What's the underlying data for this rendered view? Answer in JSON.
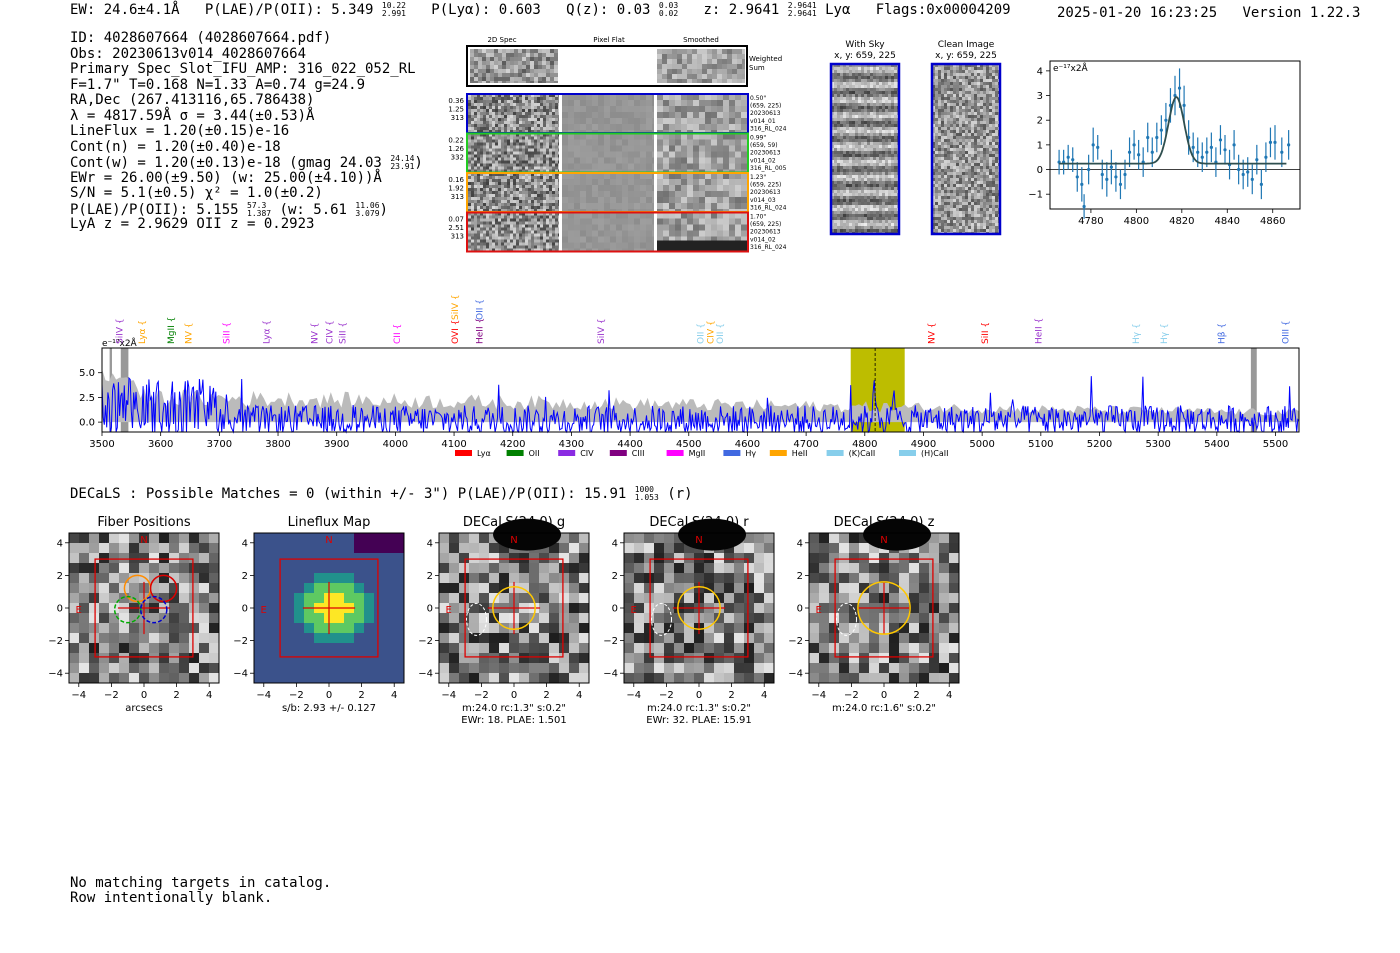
{
  "header": {
    "ew": "EW: 24.6±4.1Å",
    "plae_label": "P(LAE)/P(OII): 5.349",
    "plae_hi": "10.22",
    "plae_lo": "2.991",
    "plya": "P(Lyα): 0.603",
    "qz_label": "Q(z): 0.03",
    "qz_hi": "0.03",
    "qz_lo": "0.02",
    "z_label": "z: 2.9641",
    "z_hi": "2.9641",
    "z_lo": "2.9641",
    "line": "Lyα",
    "flags": "Flags:0x00004209",
    "timestamp": "2025-01-20 16:23:25",
    "version": "Version 1.22.3"
  },
  "info": {
    "id": "ID: 4028607664 (4028607664.pdf)",
    "obs": "Obs: 20230613v014_4028607664",
    "primary": "Primary Spec_Slot_IFU_AMP: 316_022_052_RL",
    "fit": "F=1.7\"  T=0.168  N=1.33  A=0.74  g=24.9",
    "radec": "RA,Dec (267.413116,65.786438)",
    "lambda": "λ = 4817.59Å  σ = 3.44(±0.53)Å",
    "lineflux": "LineFlux = 1.20(±0.15)e-16",
    "contn": "Cont(n) = 1.20(±0.40)e-18",
    "contw": "Cont(w) = 1.20(±0.13)e-18 (gmag 24.03",
    "contw_hi": "24.14",
    "contw_lo": "23.91",
    "contw_end": ")",
    "ewr": "EWr = 26.00(±9.50) (w: 25.00(±4.10))Å",
    "sn": "S/N = 5.1(±0.5)  χ² = 1.0(±0.2)",
    "plae": "P(LAE)/P(OII): 5.155",
    "plae_hi": "57.3",
    "plae_lo": "1.387",
    "plae_w": "(w: 5.61",
    "plae_w_hi": "11.06",
    "plae_w_lo": "3.079",
    "plae_end": ")",
    "z": "LyA z = 2.9629  OII z = 0.2923"
  },
  "cutouts": {
    "col_titles": [
      "2D Spec",
      "Pixel Flat",
      "Smoothed"
    ],
    "weighted_sum": [
      "Weighted",
      "Sum"
    ],
    "rows": [
      {
        "left": [
          "0.36",
          "1.25",
          "313"
        ],
        "right": [
          "0.50\"",
          "(659, 225)",
          "20230613",
          "v014_01",
          "316_RL_024"
        ],
        "color": "#0000cc"
      },
      {
        "left": [
          "0.22",
          "1.26",
          "332"
        ],
        "right": [
          "0.99\"",
          "(659, 59)",
          "20230613",
          "v014_02",
          "316_RL_005"
        ],
        "color": "#22cc22"
      },
      {
        "left": [
          "0.16",
          "1.92",
          "313"
        ],
        "right": [
          "1.23\"",
          "(659, 225)",
          "20230613",
          "v014_03",
          "316_RL_024"
        ],
        "color": "#ffa500"
      },
      {
        "left": [
          "0.07",
          "2.51",
          "313"
        ],
        "right": [
          "1.70\"",
          "(659, 225)",
          "20230613",
          "v014_02",
          "316_RL_024"
        ],
        "color": "#dd1111"
      }
    ]
  },
  "sky": {
    "with_sky": [
      "With Sky",
      "x, y: 659, 225"
    ],
    "clean": [
      "Clean Image",
      "x, y: 659, 225"
    ]
  },
  "zoom_chart": {
    "ylabel": "e⁻¹⁷x2Å",
    "xticks": [
      "4780",
      "4800",
      "4820",
      "4840",
      "4860"
    ],
    "yticks": [
      "-1",
      "0",
      "1",
      "2",
      "3",
      "4"
    ]
  },
  "spectrum_chart": {
    "ylabel": "e⁻¹⁷x2Å",
    "xticks": [
      "3500",
      "3600",
      "3700",
      "3800",
      "3900",
      "4000",
      "4100",
      "4200",
      "4300",
      "4400",
      "4500",
      "4600",
      "4700",
      "4800",
      "4900",
      "5000",
      "5100",
      "5200",
      "5300",
      "5400",
      "5500"
    ],
    "yticks": [
      "0.0",
      "2.5",
      "5.0"
    ],
    "lines": [
      {
        "label": "SiIV",
        "w": 3530,
        "color": "#9932cc"
      },
      {
        "label": "Lyα",
        "w": 3568,
        "color": "#ffa500"
      },
      {
        "label": "MgII",
        "w": 3618,
        "color": "#008000"
      },
      {
        "label": "NV",
        "w": 3647,
        "color": "#ffa500"
      },
      {
        "label": "SiII",
        "w": 3712,
        "color": "#ff00ff"
      },
      {
        "label": "Lyα",
        "w": 3780,
        "color": "#9932cc"
      },
      {
        "label": "NV",
        "w": 3862,
        "color": "#9932cc"
      },
      {
        "label": "CIV",
        "w": 3888,
        "color": "#9932cc"
      },
      {
        "label": "SiII",
        "w": 3910,
        "color": "#9932cc"
      },
      {
        "label": "CII",
        "w": 4003,
        "color": "#ff00ff"
      },
      {
        "label": "OVI",
        "w": 4102,
        "color": "#ff0000"
      },
      {
        "label": "SiIV",
        "w": 4102,
        "color": "#ffa500",
        "high": true
      },
      {
        "label": "HeII",
        "w": 4143,
        "color": "#800080"
      },
      {
        "label": "OII",
        "w": 4143,
        "color": "#4169e1",
        "high": true
      },
      {
        "label": "SiIV",
        "w": 4350,
        "color": "#9932cc"
      },
      {
        "label": "OII",
        "w": 4520,
        "color": "#87ceeb"
      },
      {
        "label": "CIV",
        "w": 4537,
        "color": "#ffa500"
      },
      {
        "label": "OII",
        "w": 4553,
        "color": "#87ceeb"
      },
      {
        "label": "NV",
        "w": 4914,
        "color": "#ff0000"
      },
      {
        "label": "SiII",
        "w": 5005,
        "color": "#ff0000"
      },
      {
        "label": "HeII",
        "w": 5096,
        "color": "#9932cc"
      },
      {
        "label": "Hγ",
        "w": 5262,
        "color": "#87ceeb"
      },
      {
        "label": "Hγ",
        "w": 5310,
        "color": "#87ceeb"
      },
      {
        "label": "Hβ",
        "w": 5408,
        "color": "#4169e1"
      },
      {
        "label": "OIII",
        "w": 5517,
        "color": "#4169e1"
      }
    ],
    "legend": [
      {
        "label": "Lyα",
        "color": "#ff0000"
      },
      {
        "label": "OII",
        "color": "#008000"
      },
      {
        "label": "CIV",
        "color": "#8a2be2"
      },
      {
        "label": "CIII",
        "color": "#800080"
      },
      {
        "label": "MgII",
        "color": "#ff00ff"
      },
      {
        "label": "Hγ",
        "color": "#4169e1"
      },
      {
        "label": "HeII",
        "color": "#ffa500"
      },
      {
        "label": "(K)CaII",
        "color": "#87ceeb"
      },
      {
        "label": "(H)CaII",
        "color": "#87ceeb"
      }
    ]
  },
  "decals": {
    "summary": "DECaLS : Possible Matches = 0 (within +/- 3\")  P(LAE)/P(OII): 15.91",
    "summary_hi": "1000",
    "summary_lo": "1.053",
    "summary_end": "(r)",
    "panels": [
      {
        "title": "Fiber Positions",
        "cap1": "arcsecs",
        "cap2": ""
      },
      {
        "title": "Lineflux Map",
        "cap1": "s/b: 2.93 +/- 0.127",
        "cap2": ""
      },
      {
        "title": "DECaLS(24.0) g",
        "cap1": "m:24.0 rc:1.3\"  s:0.2\"",
        "cap2": "EWr: 18, PLAE: 1.501"
      },
      {
        "title": "DECaLS(24.0) r",
        "cap1": "m:24.0 rc:1.3\"  s:0.2\"",
        "cap2": "EWr: 32, PLAE: 15.91"
      },
      {
        "title": "DECaLS(24.0) z",
        "cap1": "m:24.0 rc:1.6\"  s:0.2\"",
        "cap2": ""
      }
    ],
    "ticks": [
      "−4",
      "−2",
      "0",
      "2",
      "4"
    ],
    "n_label": "N",
    "e_label": "E"
  },
  "footer": {
    "line1": "No matching targets in catalog.",
    "line2": "Row intentionally blank."
  },
  "chart_data": [
    {
      "type": "scatter",
      "xlim": [
        4762,
        4872
      ],
      "ylim": [
        -1.6,
        4.4
      ],
      "xlabel": "",
      "ylabel": "e⁻¹⁷x2Å",
      "points": [
        {
          "x": 4766,
          "y": 0.3,
          "e": 0.5
        },
        {
          "x": 4768,
          "y": 0.3,
          "e": 0.5
        },
        {
          "x": 4770,
          "y": 0.5,
          "e": 0.5
        },
        {
          "x": 4772,
          "y": 0.4,
          "e": 0.5
        },
        {
          "x": 4774,
          "y": -0.3,
          "e": 0.6
        },
        {
          "x": 4776,
          "y": -0.6,
          "e": 0.7
        },
        {
          "x": 4777,
          "y": -1.5,
          "e": 0.5
        },
        {
          "x": 4779,
          "y": 0.0,
          "e": 0.6
        },
        {
          "x": 4781,
          "y": 1.0,
          "e": 0.7
        },
        {
          "x": 4783,
          "y": 0.9,
          "e": 0.5
        },
        {
          "x": 4785,
          "y": -0.2,
          "e": 0.6
        },
        {
          "x": 4787,
          "y": -0.4,
          "e": 0.7
        },
        {
          "x": 4789,
          "y": 0.1,
          "e": 0.7
        },
        {
          "x": 4791,
          "y": -0.3,
          "e": 0.6
        },
        {
          "x": 4793,
          "y": -0.6,
          "e": 0.6
        },
        {
          "x": 4795,
          "y": -0.2,
          "e": 0.6
        },
        {
          "x": 4797,
          "y": 0.7,
          "e": 0.6
        },
        {
          "x": 4799,
          "y": 1.0,
          "e": 0.6
        },
        {
          "x": 4801,
          "y": 0.6,
          "e": 0.6
        },
        {
          "x": 4803,
          "y": 0.3,
          "e": 0.6
        },
        {
          "x": 4805,
          "y": 1.3,
          "e": 0.6
        },
        {
          "x": 4807,
          "y": 0.7,
          "e": 0.6
        },
        {
          "x": 4809,
          "y": 1.3,
          "e": 0.6
        },
        {
          "x": 4811,
          "y": 1.6,
          "e": 0.6
        },
        {
          "x": 4813,
          "y": 2.0,
          "e": 0.7
        },
        {
          "x": 4815,
          "y": 2.6,
          "e": 0.7
        },
        {
          "x": 4817,
          "y": 3.0,
          "e": 0.8
        },
        {
          "x": 4819,
          "y": 3.3,
          "e": 0.8
        },
        {
          "x": 4821,
          "y": 2.6,
          "e": 0.8
        },
        {
          "x": 4823,
          "y": 1.3,
          "e": 0.7
        },
        {
          "x": 4825,
          "y": 0.9,
          "e": 0.6
        },
        {
          "x": 4827,
          "y": 0.7,
          "e": 0.6
        },
        {
          "x": 4829,
          "y": 0.5,
          "e": 0.6
        },
        {
          "x": 4831,
          "y": 0.7,
          "e": 0.6
        },
        {
          "x": 4833,
          "y": 0.9,
          "e": 0.6
        },
        {
          "x": 4835,
          "y": 0.3,
          "e": 0.6
        },
        {
          "x": 4837,
          "y": 1.2,
          "e": 0.6
        },
        {
          "x": 4839,
          "y": 0.8,
          "e": 0.6
        },
        {
          "x": 4841,
          "y": 0.2,
          "e": 0.6
        },
        {
          "x": 4843,
          "y": 1.0,
          "e": 0.6
        },
        {
          "x": 4845,
          "y": 0.0,
          "e": 0.6
        },
        {
          "x": 4847,
          "y": -0.2,
          "e": 0.6
        },
        {
          "x": 4849,
          "y": -0.1,
          "e": 0.6
        },
        {
          "x": 4851,
          "y": -0.4,
          "e": 0.6
        },
        {
          "x": 4853,
          "y": 0.4,
          "e": 0.6
        },
        {
          "x": 4855,
          "y": -0.6,
          "e": 0.6
        },
        {
          "x": 4857,
          "y": 0.5,
          "e": 0.6
        },
        {
          "x": 4859,
          "y": 1.1,
          "e": 0.6
        },
        {
          "x": 4861,
          "y": 1.1,
          "e": 0.7
        },
        {
          "x": 4864,
          "y": 0.7,
          "e": 0.6
        },
        {
          "x": 4867,
          "y": 1.0,
          "e": 0.6
        }
      ],
      "fit": {
        "continuum": 0.24,
        "amplitude": 2.7,
        "center": 4817.6,
        "sigma": 3.44
      }
    },
    {
      "type": "line",
      "xlim": [
        3500,
        5540
      ],
      "ylim": [
        -1.0,
        7.5
      ],
      "xlabel": "",
      "ylabel": "e⁻¹⁷x2Å",
      "highlight_band": [
        4776,
        4868
      ],
      "marked_line": 4817.6,
      "grey_bands": [
        [
          3513,
          3517
        ],
        [
          3532,
          3545
        ],
        [
          5458,
          5468
        ]
      ],
      "series": [
        {
          "name": "",
          "kind": "spectrum",
          "color": "#0000ff",
          "peak_at": 4817.6,
          "peak_value": 3.0
        },
        {
          "name": "",
          "kind": "noise",
          "color": "#bbbbbb",
          "level_start": 3.2,
          "level_end": 1.2
        }
      ]
    }
  ]
}
